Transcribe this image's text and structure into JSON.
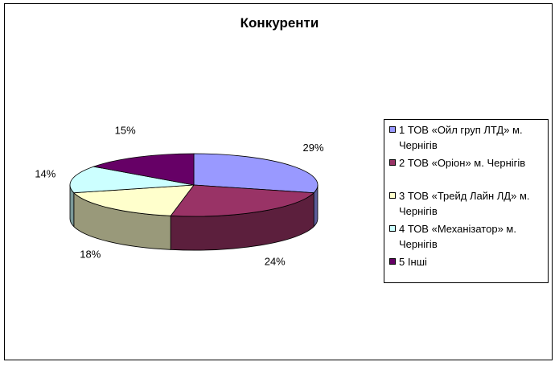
{
  "chart_data": {
    "type": "pie",
    "title": "Конкуренти",
    "categories": [
      "1 ТОВ «Ойл груп ЛТД» м. Чернігів",
      "2 ТОВ «Оріон» м. Чернігів",
      "3 ТОВ «Трейд Лайн ЛД» м. Чернігів",
      "4  ТОВ «Механізатор» м. Чернігів",
      "5  Інші"
    ],
    "values": [
      29,
      24,
      18,
      14,
      15
    ],
    "labels": [
      "29%",
      "24%",
      "18%",
      "14%",
      "15%"
    ],
    "colors": [
      "#9999ff",
      "#993366",
      "#ffffcc",
      "#ccffff",
      "#660066"
    ],
    "legend_position": "right"
  }
}
